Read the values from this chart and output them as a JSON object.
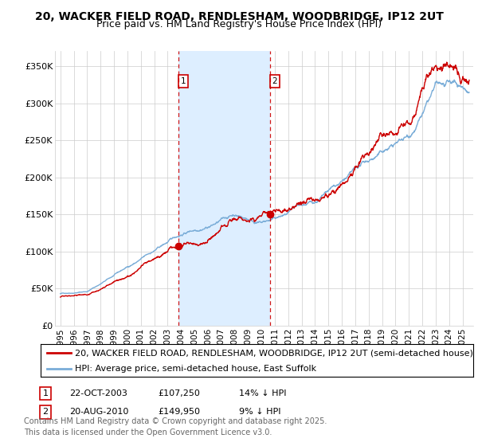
{
  "title": "20, WACKER FIELD ROAD, RENDLESHAM, WOODBRIDGE, IP12 2UT",
  "subtitle": "Price paid vs. HM Land Registry's House Price Index (HPI)",
  "ylabel_ticks": [
    "£0",
    "£50K",
    "£100K",
    "£150K",
    "£200K",
    "£250K",
    "£300K",
    "£350K"
  ],
  "ytick_values": [
    0,
    50000,
    100000,
    150000,
    200000,
    250000,
    300000,
    350000
  ],
  "ylim": [
    0,
    370000
  ],
  "xlim_start": 1994.6,
  "xlim_end": 2025.8,
  "sale1_date": 2003.81,
  "sale1_price": 107250,
  "sale2_date": 2010.64,
  "sale2_price": 149950,
  "legend_line1": "20, WACKER FIELD ROAD, RENDLESHAM, WOODBRIDGE, IP12 2UT (semi-detached house)",
  "legend_line2": "HPI: Average price, semi-detached house, East Suffolk",
  "sale1_info_label": "1",
  "sale1_info_date": "22-OCT-2003",
  "sale1_info_price": "£107,250",
  "sale1_info_pct": "14% ↓ HPI",
  "sale2_info_label": "2",
  "sale2_info_date": "20-AUG-2010",
  "sale2_info_price": "£149,950",
  "sale2_info_pct": "9% ↓ HPI",
  "footnote": "Contains HM Land Registry data © Crown copyright and database right 2025.\nThis data is licensed under the Open Government Licence v3.0.",
  "line_color_red": "#cc0000",
  "line_color_blue": "#7aadd8",
  "background_color": "#ffffff",
  "plot_bg_color": "#ffffff",
  "shade_color": "#ddeeff",
  "grid_color": "#cccccc",
  "vline_color": "#cc0000",
  "title_fontsize": 10,
  "subtitle_fontsize": 9,
  "tick_fontsize": 8,
  "legend_fontsize": 8,
  "footnote_fontsize": 7
}
